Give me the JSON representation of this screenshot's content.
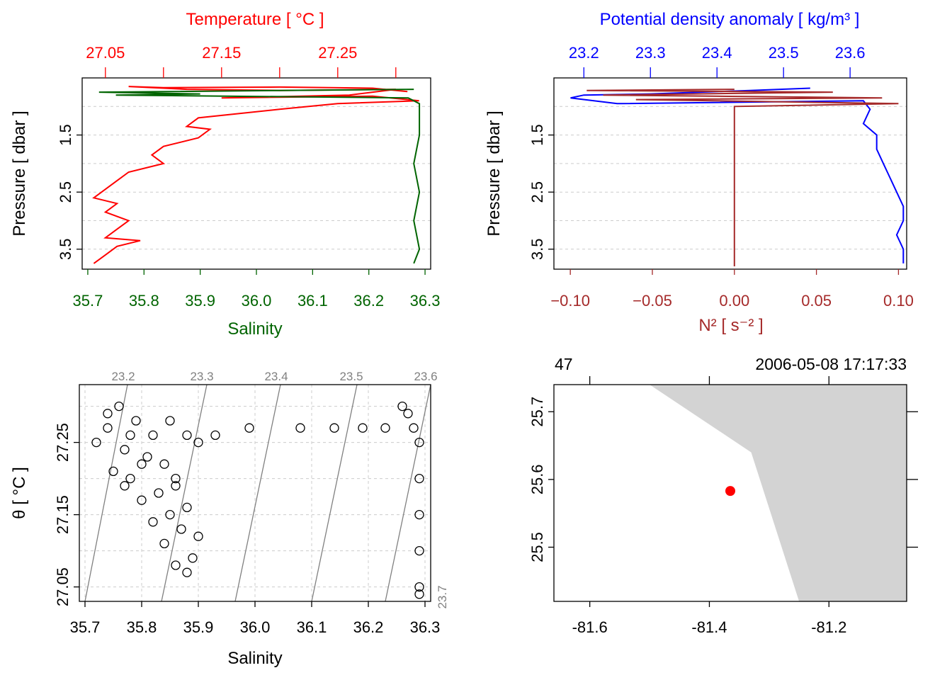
{
  "colors": {
    "temperature": "#ff0000",
    "salinity": "#006400",
    "sigma": "#0000ff",
    "n2": "#a52a2a",
    "grid": "#cccccc",
    "isopycnal": "#808080",
    "land": "#d3d3d3",
    "station": "#ff0000"
  },
  "chart_data": [
    {
      "type": "line",
      "panel": "profile-TS",
      "title": "",
      "top_axis": {
        "label": "Temperature [ °C ]",
        "ticks": [
          "27.05",
          "27.15",
          "27.25"
        ],
        "lim": [
          27.03,
          27.33
        ]
      },
      "bottom_axis": {
        "label": "Salinity",
        "ticks": [
          "35.7",
          "35.8",
          "35.9",
          "36.0",
          "36.1",
          "36.2",
          "36.3"
        ],
        "lim": [
          35.69,
          36.31
        ]
      },
      "left_axis": {
        "label": "Pressure [ dbar ]",
        "ticks": [
          "1.5",
          "2.5",
          "3.5"
        ],
        "lim": [
          0.5,
          3.85
        ],
        "reversed": true
      },
      "grid": true,
      "series": [
        {
          "name": "Temperature",
          "axis": "top",
          "points": [
            [
              27.31,
              0.74
            ],
            [
              27.28,
              0.68
            ],
            [
              27.2,
              0.66
            ],
            [
              27.1,
              0.67
            ],
            [
              27.07,
              0.65
            ],
            [
              27.12,
              0.7
            ],
            [
              27.2,
              0.72
            ],
            [
              27.3,
              0.7
            ],
            [
              27.26,
              0.8
            ],
            [
              27.15,
              0.85
            ],
            [
              27.28,
              0.82
            ],
            [
              27.32,
              0.9
            ],
            [
              27.25,
              0.95
            ],
            [
              27.2,
              1.05
            ],
            [
              27.13,
              1.2
            ],
            [
              27.12,
              1.35
            ],
            [
              27.14,
              1.4
            ],
            [
              27.13,
              1.55
            ],
            [
              27.1,
              1.7
            ],
            [
              27.09,
              1.85
            ],
            [
              27.1,
              2.0
            ],
            [
              27.07,
              2.15
            ],
            [
              27.06,
              2.3
            ],
            [
              27.05,
              2.45
            ],
            [
              27.04,
              2.6
            ],
            [
              27.06,
              2.7
            ],
            [
              27.05,
              2.85
            ],
            [
              27.07,
              3.0
            ],
            [
              27.06,
              3.15
            ],
            [
              27.05,
              3.3
            ],
            [
              27.08,
              3.35
            ],
            [
              27.06,
              3.45
            ],
            [
              27.05,
              3.6
            ],
            [
              27.04,
              3.75
            ]
          ]
        },
        {
          "name": "Salinity",
          "axis": "bottom",
          "points": [
            [
              36.28,
              0.7
            ],
            [
              35.72,
              0.75
            ],
            [
              35.9,
              0.78
            ],
            [
              35.75,
              0.8
            ],
            [
              36.27,
              0.85
            ],
            [
              36.29,
              0.95
            ],
            [
              36.29,
              1.5
            ],
            [
              36.28,
              2.0
            ],
            [
              36.29,
              2.5
            ],
            [
              36.28,
              3.0
            ],
            [
              36.29,
              3.5
            ],
            [
              36.28,
              3.75
            ]
          ]
        }
      ]
    },
    {
      "type": "line",
      "panel": "profile-density",
      "title": "",
      "top_axis": {
        "label": "Potential density anomaly [ kg/m³ ]",
        "ticks": [
          "23.2",
          "23.3",
          "23.4",
          "23.5",
          "23.6"
        ],
        "lim": [
          23.155,
          23.685
        ]
      },
      "bottom_axis": {
        "label": "N² [ s⁻² ]",
        "ticks": [
          "−0.10",
          "−0.05",
          "0.00",
          "0.05",
          "0.10"
        ],
        "lim": [
          -0.11,
          0.105
        ]
      },
      "left_axis": {
        "label": "Pressure [ dbar ]",
        "ticks": [
          "1.5",
          "2.5",
          "3.5"
        ],
        "lim": [
          0.5,
          3.85
        ],
        "reversed": true
      },
      "grid": true,
      "series": [
        {
          "name": "Potential density anomaly",
          "axis": "top",
          "points": [
            [
              23.54,
              0.68
            ],
            [
              23.45,
              0.72
            ],
            [
              23.3,
              0.78
            ],
            [
              23.2,
              0.8
            ],
            [
              23.18,
              0.85
            ],
            [
              23.25,
              0.95
            ],
            [
              23.62,
              0.9
            ],
            [
              23.63,
              1.05
            ],
            [
              23.62,
              1.3
            ],
            [
              23.64,
              1.5
            ],
            [
              23.64,
              1.75
            ],
            [
              23.65,
              2.0
            ],
            [
              23.66,
              2.25
            ],
            [
              23.67,
              2.5
            ],
            [
              23.68,
              2.75
            ],
            [
              23.68,
              3.0
            ],
            [
              23.67,
              3.25
            ],
            [
              23.68,
              3.5
            ],
            [
              23.68,
              3.75
            ]
          ]
        },
        {
          "name": "N²",
          "axis": "bottom",
          "points": [
            [
              0.0,
              0.7
            ],
            [
              -0.09,
              0.72
            ],
            [
              0.06,
              0.75
            ],
            [
              -0.08,
              0.8
            ],
            [
              0.09,
              0.85
            ],
            [
              -0.06,
              0.88
            ],
            [
              0.1,
              0.95
            ],
            [
              0.0,
              1.0
            ],
            [
              0.0,
              2.0
            ],
            [
              0.0,
              3.0
            ],
            [
              0.0,
              3.8
            ]
          ]
        }
      ]
    },
    {
      "type": "scatter",
      "panel": "TS-diagram",
      "title": "",
      "xlabel": "Salinity",
      "ylabel": "θ [ °C ]",
      "xticks": [
        "35.7",
        "35.8",
        "35.9",
        "36.0",
        "36.1",
        "36.2",
        "36.3"
      ],
      "yticks": [
        "27.05",
        "27.15",
        "27.25"
      ],
      "xlim": [
        35.69,
        36.31
      ],
      "ylim": [
        27.03,
        27.33
      ],
      "grid": true,
      "isopycnal_labels": [
        "23.2",
        "23.3",
        "23.4",
        "23.5",
        "23.6",
        "23.7"
      ],
      "points": [
        [
          35.74,
          27.29
        ],
        [
          35.76,
          27.3
        ],
        [
          35.79,
          27.28
        ],
        [
          35.72,
          27.25
        ],
        [
          35.74,
          27.27
        ],
        [
          35.77,
          27.24
        ],
        [
          35.8,
          27.22
        ],
        [
          35.82,
          27.26
        ],
        [
          35.85,
          27.28
        ],
        [
          35.88,
          27.26
        ],
        [
          35.9,
          27.25
        ],
        [
          35.93,
          27.26
        ],
        [
          35.99,
          27.27
        ],
        [
          36.08,
          27.27
        ],
        [
          36.14,
          27.27
        ],
        [
          36.19,
          27.27
        ],
        [
          36.23,
          27.27
        ],
        [
          36.26,
          27.3
        ],
        [
          36.27,
          27.29
        ],
        [
          36.28,
          27.27
        ],
        [
          36.29,
          27.25
        ],
        [
          36.29,
          27.2
        ],
        [
          36.29,
          27.15
        ],
        [
          36.29,
          27.1
        ],
        [
          36.29,
          27.05
        ],
        [
          36.29,
          27.04
        ],
        [
          35.78,
          27.2
        ],
        [
          35.8,
          27.17
        ],
        [
          35.82,
          27.14
        ],
        [
          35.84,
          27.11
        ],
        [
          35.86,
          27.08
        ],
        [
          35.88,
          27.07
        ],
        [
          35.89,
          27.09
        ],
        [
          35.9,
          27.12
        ],
        [
          35.88,
          27.16
        ],
        [
          35.86,
          27.2
        ],
        [
          35.84,
          27.22
        ],
        [
          35.83,
          27.18
        ],
        [
          35.85,
          27.15
        ],
        [
          35.87,
          27.13
        ],
        [
          35.86,
          27.19
        ],
        [
          35.75,
          27.21
        ],
        [
          35.77,
          27.19
        ],
        [
          35.81,
          27.23
        ],
        [
          35.78,
          27.26
        ]
      ]
    },
    {
      "type": "map",
      "panel": "station-map",
      "title": "",
      "top_left_label": "47",
      "top_right_label": "2006-05-08 17:17:33",
      "xticks": [
        "-81.6",
        "-81.4",
        "-81.2"
      ],
      "yticks": [
        "25.5",
        "25.6",
        "25.7"
      ],
      "xlim": [
        -81.66,
        -81.07
      ],
      "ylim": [
        25.42,
        25.74
      ],
      "station": {
        "lon": -81.365,
        "lat": 25.583
      },
      "coastline": [
        [
          -81.5,
          25.74
        ],
        [
          -81.33,
          25.64
        ],
        [
          -81.25,
          25.42
        ],
        [
          -81.07,
          25.42
        ],
        [
          -81.07,
          25.74
        ]
      ]
    }
  ]
}
